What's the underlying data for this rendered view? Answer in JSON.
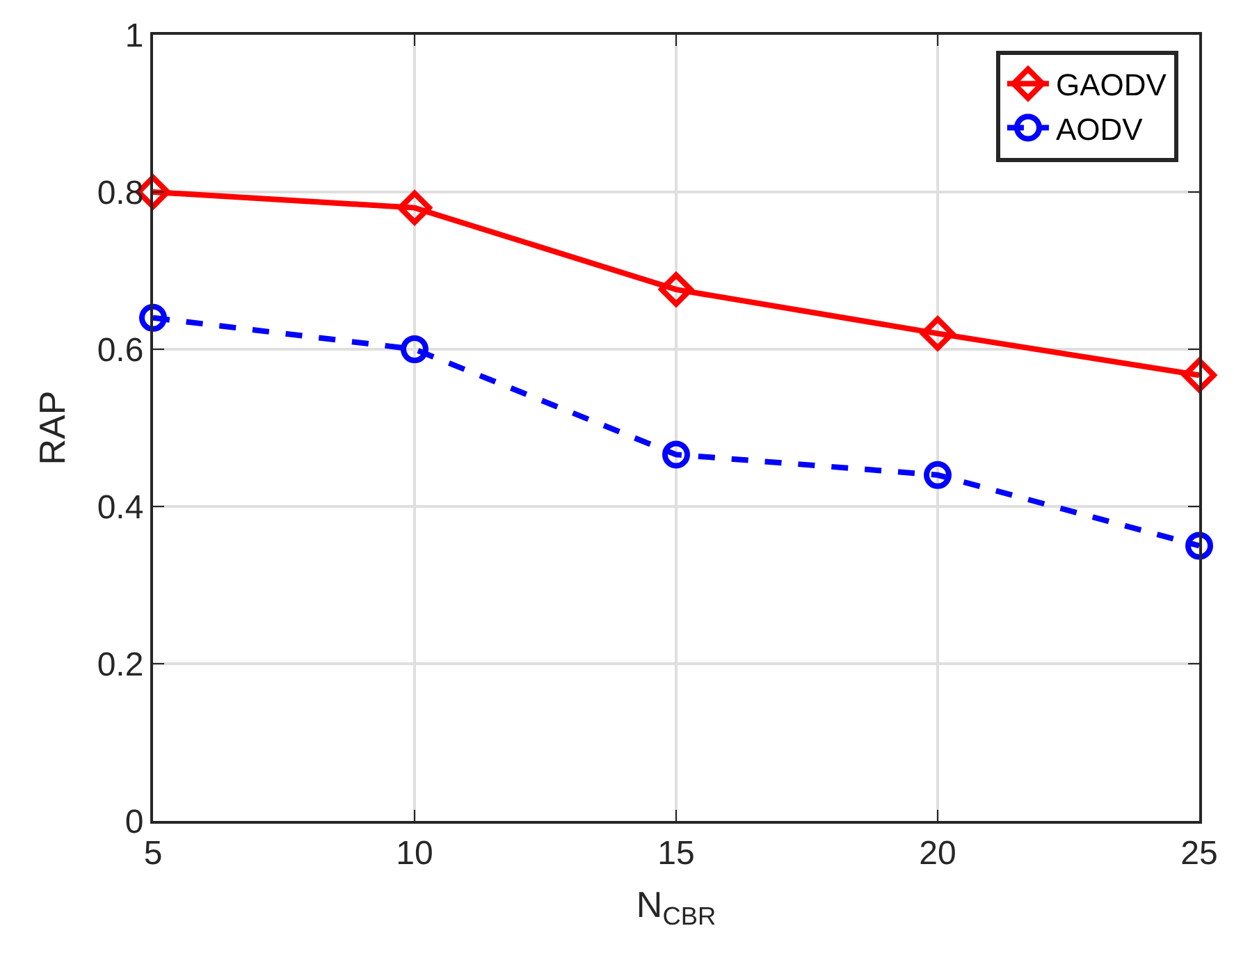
{
  "chart_data": {
    "type": "line",
    "xlabel": "N$_{CBR}$",
    "ylabel": "RAP",
    "x": [
      5,
      10,
      15,
      20,
      25
    ],
    "xlim": [
      5,
      25
    ],
    "xticks": [
      5,
      10,
      15,
      20,
      25
    ],
    "ylim": [
      0,
      1
    ],
    "yticks": [
      0,
      0.2,
      0.4,
      0.6,
      0.8,
      1
    ],
    "series": [
      {
        "name": "GAODV",
        "color": "#ff0000",
        "values": [
          0.8,
          0.78,
          0.676,
          0.62,
          0.567
        ],
        "marker": "diamond",
        "line_style": "solid"
      },
      {
        "name": "AODV",
        "color": "#0000ff",
        "values": [
          0.64,
          0.6,
          0.466,
          0.44,
          0.35
        ],
        "marker": "circle",
        "line_style": "dashed"
      }
    ],
    "grid": true,
    "legend": "top right"
  }
}
